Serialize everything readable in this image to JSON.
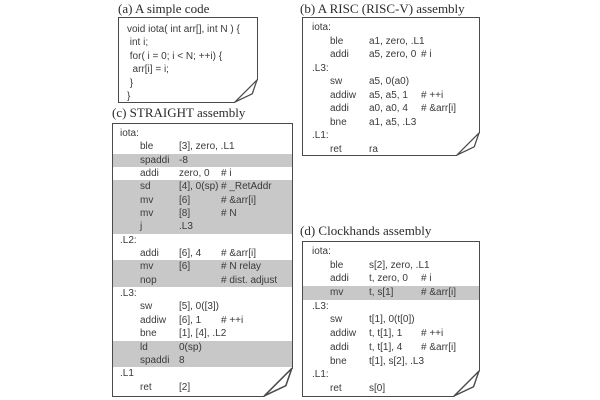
{
  "colors": {
    "highlight": "#c8c8c8",
    "border": "#4a4a4a",
    "text": "#3a3a3a",
    "background": "#ffffff"
  },
  "panels": [
    {
      "id": "a",
      "caption": "(a) A simple code",
      "lines": [
        "void iota( int arr[], int N ) {",
        " int i;",
        " for( i = 0; i < N; ++i) {",
        "  arr[i] = i;",
        " }",
        "}"
      ]
    },
    {
      "id": "b",
      "caption": "(b) A RISC (RISC-V) assembly",
      "rows": [
        {
          "label": "iota:"
        },
        {
          "m": "ble",
          "o": "a1, zero, .L1"
        },
        {
          "m": "addi",
          "o": "a5, zero, 0",
          "c": "# i"
        },
        {
          "label": ".L3:"
        },
        {
          "m": "sw",
          "o": "a5, 0(a0)"
        },
        {
          "m": "addiw",
          "o": "a5, a5, 1",
          "c": "# ++i"
        },
        {
          "m": "addi",
          "o": "a0, a0, 4",
          "c": "# &arr[i]"
        },
        {
          "m": "bne",
          "o": "a1, a5, .L3"
        },
        {
          "label": ".L1:"
        },
        {
          "m": "ret",
          "o": "ra"
        }
      ]
    },
    {
      "id": "c",
      "caption": "(c) STRAIGHT assembly",
      "rows": [
        {
          "label": "iota:"
        },
        {
          "m": "ble",
          "o": "[3], zero, .L1"
        },
        {
          "m": "spaddi",
          "o": "-8",
          "hl": true
        },
        {
          "m": "addi",
          "o": "zero, 0",
          "c": "# i"
        },
        {
          "m": "sd",
          "o": "[4], 0(sp)",
          "c": "# _RetAddr",
          "hl": true
        },
        {
          "m": "mv",
          "o": "[6]",
          "c": "# &arr[i]",
          "hl": true
        },
        {
          "m": "mv",
          "o": "[8]",
          "c": "# N",
          "hl": true
        },
        {
          "m": "j",
          "o": ".L3",
          "hl": true
        },
        {
          "label": ".L2:"
        },
        {
          "m": "addi",
          "o": "[6], 4",
          "c": "# &arr[i]"
        },
        {
          "m": "mv",
          "o": "[6]",
          "c": "# N relay",
          "hl": true
        },
        {
          "m": "nop",
          "o": "",
          "c": "# dist. adjust",
          "hl": true
        },
        {
          "label": ".L3:"
        },
        {
          "m": "sw",
          "o": "[5], 0([3])"
        },
        {
          "m": "addiw",
          "o": "[6], 1",
          "c": "# ++i"
        },
        {
          "m": "bne",
          "o": "[1], [4], .L2"
        },
        {
          "m": "ld",
          "o": "0(sp)",
          "hl": true
        },
        {
          "m": "spaddi",
          "o": "8",
          "hl": true
        },
        {
          "label": ".L1"
        },
        {
          "m": "ret",
          "o": "[2]"
        }
      ]
    },
    {
      "id": "d",
      "caption": "(d) Clockhands assembly",
      "rows": [
        {
          "label": "iota:"
        },
        {
          "m": "ble",
          "o": "s[2], zero, .L1"
        },
        {
          "m": "addi",
          "o": "t, zero, 0",
          "c": "# i"
        },
        {
          "m": "mv",
          "o": "t, s[1]",
          "c": "# &arr[i]",
          "hl": true
        },
        {
          "label": ".L3:"
        },
        {
          "m": "sw",
          "o": "t[1], 0(t[0])"
        },
        {
          "m": "addiw",
          "o": "t, t[1], 1",
          "c": "# ++i"
        },
        {
          "m": "addi",
          "o": "t, t[1], 4",
          "c": "# &arr[i]"
        },
        {
          "m": "bne",
          "o": "t[1], s[2], .L3"
        },
        {
          "label": ".L1:"
        },
        {
          "m": "ret",
          "o": "s[0]"
        }
      ]
    }
  ]
}
